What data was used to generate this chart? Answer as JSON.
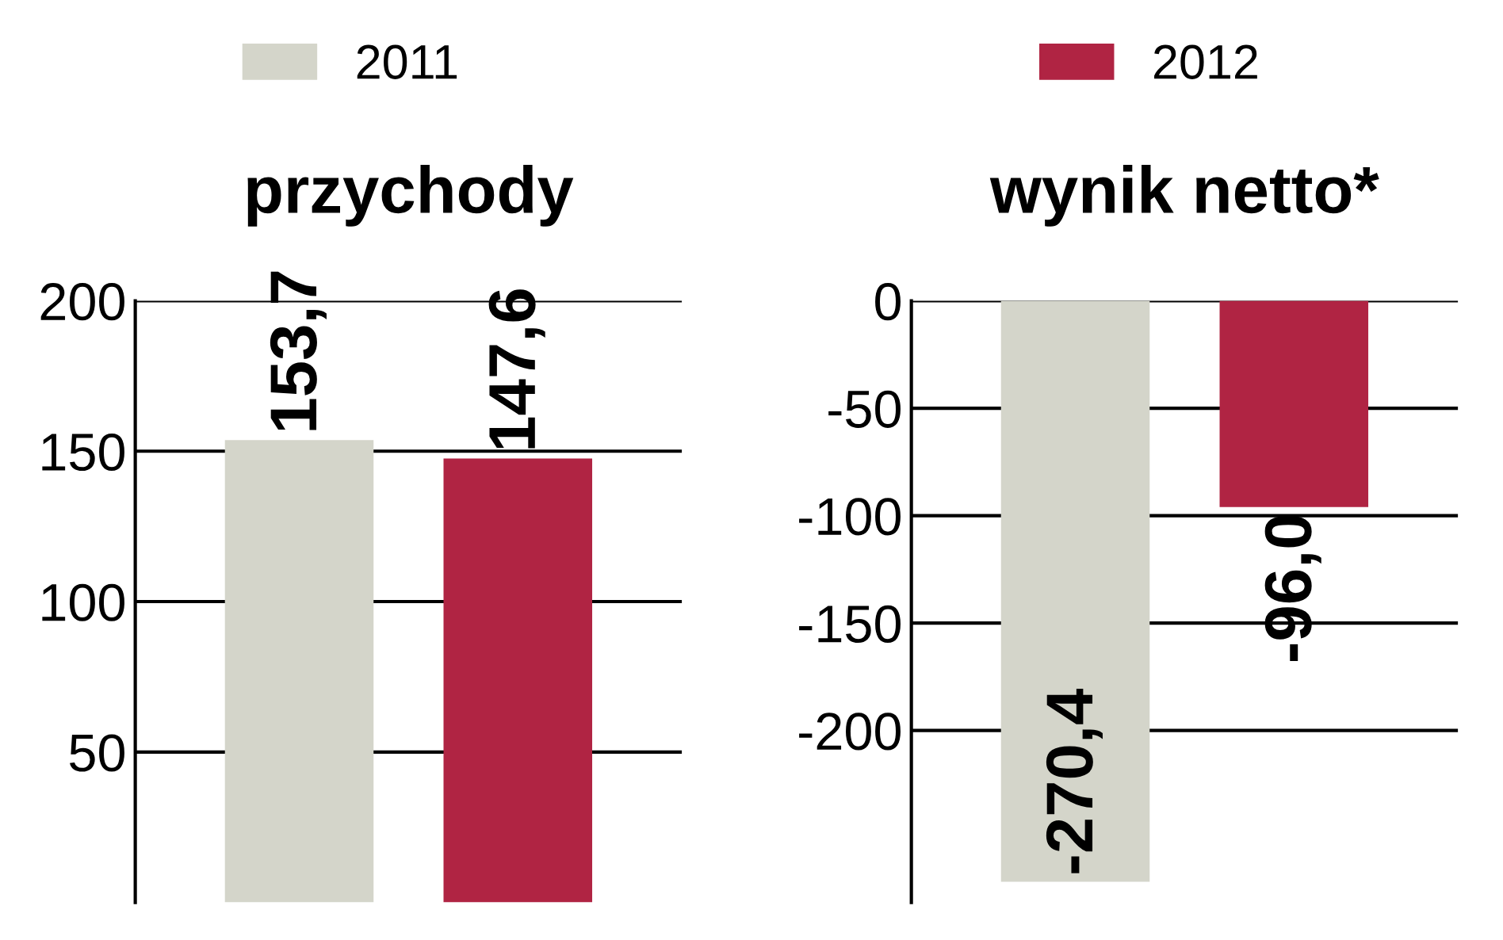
{
  "chart_data": [
    {
      "type": "bar",
      "title": "przychody",
      "categories": [
        null
      ],
      "series": [
        {
          "name": "2011",
          "color": "#d4d5ca",
          "values": [
            153.7
          ],
          "value_labels": [
            "153,7"
          ]
        },
        {
          "name": "2012",
          "color": "#b02443",
          "values": [
            147.6
          ],
          "value_labels": [
            "147,6"
          ]
        }
      ],
      "ylim": [
        0,
        200
      ],
      "yticks": [
        50,
        100,
        150,
        200
      ],
      "grid": "y",
      "legend": "top"
    },
    {
      "type": "bar",
      "title": "wynik netto*",
      "categories": [
        null
      ],
      "series": [
        {
          "color": "#d4d5ca",
          "values": [
            -270.4
          ],
          "value_labels": [
            "-270,4"
          ]
        },
        {
          "color": "#b02443",
          "values": [
            -96.0
          ],
          "value_labels": [
            "-96,0"
          ]
        }
      ],
      "ylim": [
        -280,
        0
      ],
      "yticks": [
        -200,
        -150,
        -100,
        -50,
        0
      ],
      "grid": "y"
    }
  ]
}
